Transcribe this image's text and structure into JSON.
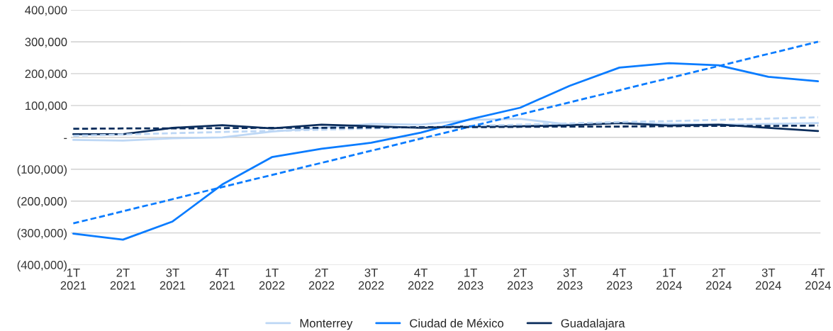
{
  "chart_data": {
    "type": "line",
    "categories": [
      "1T\n2021",
      "2T\n2021",
      "3T\n2021",
      "4T\n2021",
      "1T\n2022",
      "2T\n2022",
      "3T\n2022",
      "4T\n2022",
      "1T\n2023",
      "2T\n2023",
      "3T\n2023",
      "4T\n2023",
      "1T\n2024",
      "2T\n2024",
      "3T\n2024",
      "4T\n2024"
    ],
    "series": [
      {
        "name": "Monterrey",
        "color": "#bdd7f5",
        "values": [
          -8000,
          -10000,
          -3000,
          0,
          18000,
          30000,
          42000,
          40000,
          55000,
          58000,
          40000,
          45000,
          42000,
          40000,
          42000,
          45000
        ]
      },
      {
        "name": "Ciudad de México",
        "color": "#0a7cff",
        "values": [
          -302000,
          -321000,
          -264000,
          -148000,
          -62000,
          -36000,
          -17000,
          15000,
          57000,
          93000,
          162000,
          219000,
          233000,
          226000,
          190000,
          176000
        ]
      },
      {
        "name": "Guadalajara",
        "color": "#0b2d5c",
        "values": [
          10000,
          10000,
          30000,
          38000,
          28000,
          40000,
          35000,
          30000,
          35000,
          35000,
          38000,
          45000,
          37000,
          40000,
          30000,
          20000
        ]
      },
      {
        "color": "#bdd7f5",
        "line_style": "dashed",
        "values": [
          5000,
          9000,
          13000,
          17000,
          20000,
          24000,
          28000,
          32000,
          36000,
          40000,
          44000,
          48000,
          51000,
          55000,
          59000,
          63000
        ]
      },
      {
        "color": "#0a7cff",
        "line_style": "dashed",
        "values": [
          -270000,
          -232000,
          -194000,
          -156000,
          -118000,
          -80000,
          -42000,
          -4000,
          34000,
          72000,
          110000,
          148000,
          186000,
          224000,
          262000,
          300000
        ]
      },
      {
        "color": "#0b2d5c",
        "line_style": "dashed",
        "values": [
          27000,
          28000,
          28000,
          29000,
          30000,
          30000,
          31000,
          32000,
          32000,
          33000,
          34000,
          34000,
          35000,
          36000,
          36000,
          37000
        ]
      }
    ],
    "ylim": [
      -400000,
      400000
    ],
    "yticks": [
      {
        "value": -400000,
        "label": "(400,000)"
      },
      {
        "value": -300000,
        "label": "(300,000)"
      },
      {
        "value": -200000,
        "label": "(200,000)"
      },
      {
        "value": -100000,
        "label": "(100,000)"
      },
      {
        "value": 0,
        "label": "-"
      },
      {
        "value": 100000,
        "label": "100,000"
      },
      {
        "value": 200000,
        "label": "200,000"
      },
      {
        "value": 300000,
        "label": "300,000"
      },
      {
        "value": 400000,
        "label": "400,000"
      }
    ],
    "grid": "y",
    "legend": "bottom",
    "marker": "none",
    "line_style": "solid"
  }
}
